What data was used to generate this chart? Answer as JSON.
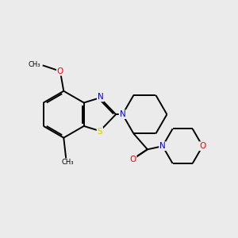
{
  "background_color": "#ebebeb",
  "bond_color": "#000000",
  "atom_colors": {
    "N": "#0000ff",
    "O": "#ff0000",
    "S": "#cccc00",
    "C": "#000000"
  },
  "figsize": [
    3.0,
    3.0
  ],
  "dpi": 100
}
